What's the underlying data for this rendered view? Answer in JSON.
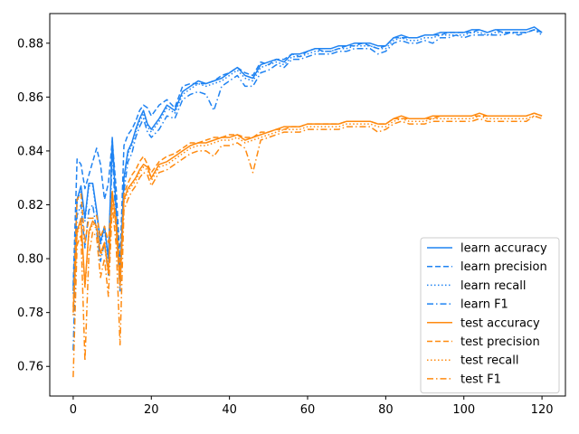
{
  "chart_data": {
    "type": "line",
    "title": "",
    "xlabel": "",
    "ylabel": "",
    "xlim": [
      -6,
      126
    ],
    "ylim": [
      0.749,
      0.891
    ],
    "xticks": [
      0,
      20,
      40,
      60,
      80,
      100,
      120
    ],
    "yticks": [
      0.76,
      0.78,
      0.8,
      0.82,
      0.84,
      0.86,
      0.88
    ],
    "tick_labels_x": [
      "0",
      "20",
      "40",
      "60",
      "80",
      "100",
      "120"
    ],
    "tick_labels_y": [
      "0.76",
      "0.78",
      "0.80",
      "0.82",
      "0.84",
      "0.86",
      "0.88"
    ],
    "grid": false,
    "legend_position": "lower-right",
    "colors": {
      "learn": "#1f83f2",
      "test": "#ff8a0f"
    },
    "series": [
      {
        "name": "learn accuracy",
        "group": "learn",
        "style": "solid",
        "x": [
          0,
          1,
          2,
          3,
          4,
          5,
          6,
          7,
          8,
          9,
          10,
          11,
          12,
          13,
          14,
          15,
          16,
          17,
          18,
          19,
          20,
          22,
          24,
          26,
          28,
          30,
          32,
          34,
          36,
          38,
          40,
          42,
          44,
          46,
          48,
          50,
          52,
          54,
          56,
          58,
          60,
          62,
          64,
          66,
          68,
          70,
          72,
          74,
          76,
          78,
          80,
          82,
          84,
          86,
          88,
          90,
          92,
          94,
          96,
          98,
          100,
          102,
          104,
          106,
          108,
          110,
          112,
          114,
          116,
          118,
          120
        ],
        "values": [
          0.788,
          0.822,
          0.827,
          0.815,
          0.828,
          0.828,
          0.818,
          0.806,
          0.812,
          0.8,
          0.845,
          0.818,
          0.793,
          0.83,
          0.84,
          0.843,
          0.848,
          0.852,
          0.855,
          0.85,
          0.848,
          0.852,
          0.857,
          0.855,
          0.862,
          0.864,
          0.866,
          0.865,
          0.866,
          0.867,
          0.869,
          0.871,
          0.868,
          0.867,
          0.872,
          0.873,
          0.874,
          0.873,
          0.876,
          0.876,
          0.877,
          0.878,
          0.878,
          0.878,
          0.879,
          0.879,
          0.88,
          0.88,
          0.88,
          0.879,
          0.879,
          0.882,
          0.883,
          0.882,
          0.882,
          0.883,
          0.883,
          0.884,
          0.884,
          0.884,
          0.884,
          0.885,
          0.885,
          0.884,
          0.885,
          0.885,
          0.885,
          0.885,
          0.885,
          0.886,
          0.884
        ]
      },
      {
        "name": "learn precision",
        "group": "learn",
        "style": "dashed",
        "x": [
          0,
          1,
          2,
          3,
          4,
          5,
          6,
          7,
          8,
          9,
          10,
          11,
          12,
          13,
          14,
          15,
          16,
          17,
          18,
          19,
          20,
          22,
          24,
          26,
          28,
          30,
          32,
          34,
          36,
          38,
          40,
          42,
          44,
          46,
          48,
          50,
          52,
          54,
          56,
          58,
          60,
          62,
          64,
          66,
          68,
          70,
          72,
          74,
          76,
          78,
          80,
          82,
          84,
          86,
          88,
          90,
          92,
          94,
          96,
          98,
          100,
          102,
          104,
          106,
          108,
          110,
          112,
          114,
          116,
          118,
          120
        ],
        "values": [
          0.79,
          0.837,
          0.835,
          0.826,
          0.831,
          0.836,
          0.841,
          0.835,
          0.822,
          0.828,
          0.844,
          0.826,
          0.799,
          0.842,
          0.846,
          0.848,
          0.851,
          0.855,
          0.857,
          0.856,
          0.853,
          0.857,
          0.859,
          0.856,
          0.864,
          0.865,
          0.865,
          0.865,
          0.866,
          0.868,
          0.869,
          0.871,
          0.869,
          0.868,
          0.873,
          0.872,
          0.874,
          0.874,
          0.876,
          0.875,
          0.877,
          0.878,
          0.877,
          0.877,
          0.878,
          0.879,
          0.879,
          0.88,
          0.879,
          0.878,
          0.879,
          0.882,
          0.882,
          0.882,
          0.882,
          0.883,
          0.883,
          0.883,
          0.884,
          0.884,
          0.884,
          0.884,
          0.885,
          0.884,
          0.885,
          0.884,
          0.884,
          0.884,
          0.884,
          0.885,
          0.884
        ]
      },
      {
        "name": "learn recall",
        "group": "learn",
        "style": "dotted",
        "x": [
          0,
          1,
          2,
          3,
          4,
          5,
          6,
          7,
          8,
          9,
          10,
          11,
          12,
          13,
          14,
          15,
          16,
          17,
          18,
          19,
          20,
          22,
          24,
          26,
          28,
          30,
          32,
          34,
          36,
          38,
          40,
          42,
          44,
          46,
          48,
          50,
          52,
          54,
          56,
          58,
          60,
          62,
          64,
          66,
          68,
          70,
          72,
          74,
          76,
          78,
          80,
          82,
          84,
          86,
          88,
          90,
          92,
          94,
          96,
          98,
          100,
          102,
          104,
          106,
          108,
          110,
          112,
          114,
          116,
          118,
          120
        ],
        "values": [
          0.787,
          0.821,
          0.826,
          0.814,
          0.827,
          0.827,
          0.817,
          0.805,
          0.811,
          0.799,
          0.844,
          0.817,
          0.792,
          0.829,
          0.839,
          0.842,
          0.847,
          0.851,
          0.854,
          0.849,
          0.847,
          0.851,
          0.856,
          0.854,
          0.861,
          0.863,
          0.865,
          0.864,
          0.865,
          0.866,
          0.868,
          0.87,
          0.867,
          0.866,
          0.871,
          0.872,
          0.873,
          0.872,
          0.875,
          0.875,
          0.876,
          0.877,
          0.877,
          0.877,
          0.878,
          0.878,
          0.879,
          0.879,
          0.879,
          0.878,
          0.878,
          0.881,
          0.882,
          0.881,
          0.881,
          0.882,
          0.882,
          0.883,
          0.883,
          0.883,
          0.883,
          0.884,
          0.884,
          0.883,
          0.884,
          0.884,
          0.884,
          0.884,
          0.884,
          0.885,
          0.883
        ]
      },
      {
        "name": "learn F1",
        "group": "learn",
        "style": "dashdot",
        "x": [
          0,
          1,
          2,
          3,
          4,
          5,
          6,
          7,
          8,
          9,
          10,
          11,
          12,
          13,
          14,
          15,
          16,
          17,
          18,
          19,
          20,
          22,
          24,
          26,
          28,
          30,
          32,
          34,
          36,
          38,
          40,
          42,
          44,
          46,
          48,
          50,
          52,
          54,
          56,
          58,
          60,
          62,
          64,
          66,
          68,
          70,
          72,
          74,
          76,
          78,
          80,
          82,
          84,
          86,
          88,
          90,
          92,
          94,
          96,
          98,
          100,
          102,
          104,
          106,
          108,
          110,
          112,
          114,
          116,
          118,
          120
        ],
        "values": [
          0.766,
          0.816,
          0.82,
          0.804,
          0.818,
          0.82,
          0.81,
          0.799,
          0.806,
          0.794,
          0.84,
          0.812,
          0.788,
          0.825,
          0.836,
          0.839,
          0.845,
          0.849,
          0.852,
          0.847,
          0.845,
          0.848,
          0.853,
          0.852,
          0.859,
          0.861,
          0.862,
          0.861,
          0.855,
          0.864,
          0.866,
          0.868,
          0.864,
          0.864,
          0.869,
          0.87,
          0.872,
          0.871,
          0.874,
          0.874,
          0.875,
          0.876,
          0.876,
          0.876,
          0.877,
          0.877,
          0.878,
          0.878,
          0.878,
          0.876,
          0.877,
          0.88,
          0.881,
          0.88,
          0.88,
          0.881,
          0.88,
          0.882,
          0.882,
          0.883,
          0.882,
          0.883,
          0.883,
          0.883,
          0.883,
          0.883,
          0.884,
          0.883,
          0.884,
          0.885,
          0.884
        ]
      },
      {
        "name": "test accuracy",
        "group": "test",
        "style": "solid",
        "x": [
          0,
          1,
          2,
          3,
          4,
          5,
          6,
          7,
          8,
          9,
          10,
          11,
          12,
          13,
          14,
          15,
          16,
          17,
          18,
          19,
          20,
          22,
          24,
          26,
          28,
          30,
          32,
          34,
          36,
          38,
          40,
          42,
          44,
          46,
          48,
          50,
          52,
          54,
          56,
          58,
          60,
          62,
          64,
          66,
          68,
          70,
          72,
          74,
          76,
          78,
          80,
          82,
          84,
          86,
          88,
          90,
          92,
          94,
          96,
          98,
          100,
          102,
          104,
          106,
          108,
          110,
          112,
          114,
          116,
          118,
          120
        ],
        "values": [
          0.78,
          0.81,
          0.815,
          0.79,
          0.81,
          0.814,
          0.812,
          0.802,
          0.806,
          0.795,
          0.825,
          0.812,
          0.79,
          0.822,
          0.826,
          0.828,
          0.83,
          0.833,
          0.835,
          0.834,
          0.83,
          0.835,
          0.836,
          0.838,
          0.84,
          0.842,
          0.843,
          0.843,
          0.844,
          0.845,
          0.845,
          0.846,
          0.844,
          0.845,
          0.846,
          0.847,
          0.848,
          0.849,
          0.849,
          0.849,
          0.85,
          0.85,
          0.85,
          0.85,
          0.85,
          0.851,
          0.851,
          0.851,
          0.851,
          0.85,
          0.85,
          0.852,
          0.853,
          0.852,
          0.852,
          0.852,
          0.853,
          0.853,
          0.853,
          0.853,
          0.853,
          0.853,
          0.854,
          0.853,
          0.853,
          0.853,
          0.853,
          0.853,
          0.853,
          0.854,
          0.853
        ]
      },
      {
        "name": "test precision",
        "group": "test",
        "style": "dashed",
        "x": [
          0,
          1,
          2,
          3,
          4,
          5,
          6,
          7,
          8,
          9,
          10,
          11,
          12,
          13,
          14,
          15,
          16,
          17,
          18,
          19,
          20,
          22,
          24,
          26,
          28,
          30,
          32,
          34,
          36,
          38,
          40,
          42,
          44,
          46,
          48,
          50,
          52,
          54,
          56,
          58,
          60,
          62,
          64,
          66,
          68,
          70,
          72,
          74,
          76,
          78,
          80,
          82,
          84,
          86,
          88,
          90,
          92,
          94,
          96,
          98,
          100,
          102,
          104,
          106,
          108,
          110,
          112,
          114,
          116,
          118,
          120
        ],
        "values": [
          0.782,
          0.822,
          0.824,
          0.806,
          0.815,
          0.815,
          0.816,
          0.808,
          0.812,
          0.806,
          0.824,
          0.815,
          0.795,
          0.824,
          0.828,
          0.831,
          0.833,
          0.836,
          0.838,
          0.835,
          0.832,
          0.836,
          0.838,
          0.839,
          0.841,
          0.843,
          0.843,
          0.844,
          0.845,
          0.845,
          0.846,
          0.846,
          0.845,
          0.845,
          0.847,
          0.847,
          0.848,
          0.848,
          0.849,
          0.849,
          0.85,
          0.85,
          0.85,
          0.85,
          0.85,
          0.851,
          0.851,
          0.851,
          0.851,
          0.85,
          0.85,
          0.852,
          0.852,
          0.852,
          0.852,
          0.852,
          0.852,
          0.853,
          0.853,
          0.853,
          0.853,
          0.853,
          0.853,
          0.853,
          0.853,
          0.853,
          0.853,
          0.853,
          0.853,
          0.854,
          0.853
        ]
      },
      {
        "name": "test recall",
        "group": "test",
        "style": "dotted",
        "x": [
          0,
          1,
          2,
          3,
          4,
          5,
          6,
          7,
          8,
          9,
          10,
          11,
          12,
          13,
          14,
          15,
          16,
          17,
          18,
          19,
          20,
          22,
          24,
          26,
          28,
          30,
          32,
          34,
          36,
          38,
          40,
          42,
          44,
          46,
          48,
          50,
          52,
          54,
          56,
          58,
          60,
          62,
          64,
          66,
          68,
          70,
          72,
          74,
          76,
          78,
          80,
          82,
          84,
          86,
          88,
          90,
          92,
          94,
          96,
          98,
          100,
          102,
          104,
          106,
          108,
          110,
          112,
          114,
          116,
          118,
          120
        ],
        "values": [
          0.779,
          0.809,
          0.814,
          0.789,
          0.809,
          0.813,
          0.811,
          0.801,
          0.805,
          0.794,
          0.824,
          0.811,
          0.789,
          0.821,
          0.825,
          0.827,
          0.829,
          0.832,
          0.834,
          0.833,
          0.829,
          0.834,
          0.835,
          0.837,
          0.839,
          0.841,
          0.842,
          0.842,
          0.843,
          0.844,
          0.844,
          0.845,
          0.843,
          0.844,
          0.845,
          0.846,
          0.847,
          0.848,
          0.848,
          0.848,
          0.849,
          0.849,
          0.849,
          0.849,
          0.849,
          0.85,
          0.85,
          0.85,
          0.85,
          0.849,
          0.849,
          0.851,
          0.852,
          0.851,
          0.851,
          0.851,
          0.852,
          0.852,
          0.852,
          0.852,
          0.852,
          0.852,
          0.853,
          0.852,
          0.852,
          0.852,
          0.852,
          0.852,
          0.852,
          0.853,
          0.852
        ]
      },
      {
        "name": "test F1",
        "group": "test",
        "style": "dashdot",
        "x": [
          0,
          1,
          2,
          3,
          4,
          5,
          6,
          7,
          8,
          9,
          10,
          11,
          12,
          13,
          14,
          15,
          16,
          17,
          18,
          19,
          20,
          22,
          24,
          26,
          28,
          30,
          32,
          34,
          36,
          38,
          40,
          42,
          44,
          46,
          48,
          50,
          52,
          54,
          56,
          58,
          60,
          62,
          64,
          66,
          68,
          70,
          72,
          74,
          76,
          78,
          80,
          82,
          84,
          86,
          88,
          90,
          92,
          94,
          96,
          98,
          100,
          102,
          104,
          106,
          108,
          110,
          112,
          114,
          116,
          118,
          120
        ],
        "values": [
          0.756,
          0.805,
          0.809,
          0.762,
          0.801,
          0.81,
          0.808,
          0.793,
          0.8,
          0.786,
          0.82,
          0.805,
          0.768,
          0.818,
          0.822,
          0.825,
          0.827,
          0.83,
          0.832,
          0.831,
          0.827,
          0.832,
          0.833,
          0.835,
          0.837,
          0.839,
          0.84,
          0.84,
          0.838,
          0.842,
          0.842,
          0.843,
          0.841,
          0.832,
          0.844,
          0.845,
          0.846,
          0.847,
          0.847,
          0.847,
          0.848,
          0.848,
          0.848,
          0.848,
          0.848,
          0.849,
          0.849,
          0.849,
          0.849,
          0.847,
          0.848,
          0.85,
          0.851,
          0.85,
          0.85,
          0.85,
          0.851,
          0.851,
          0.851,
          0.851,
          0.851,
          0.851,
          0.852,
          0.851,
          0.851,
          0.851,
          0.851,
          0.851,
          0.851,
          0.853,
          0.852
        ]
      }
    ]
  }
}
